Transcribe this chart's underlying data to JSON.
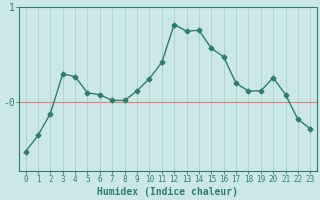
{
  "x": [
    0,
    1,
    2,
    3,
    4,
    5,
    6,
    7,
    8,
    9,
    10,
    11,
    12,
    13,
    14,
    15,
    16,
    17,
    18,
    19,
    20,
    21,
    22,
    23
  ],
  "y": [
    -0.52,
    -0.35,
    -0.12,
    0.3,
    0.27,
    0.1,
    0.08,
    0.02,
    0.02,
    0.12,
    0.25,
    0.42,
    0.82,
    0.75,
    0.76,
    0.57,
    0.48,
    0.2,
    0.12,
    0.12,
    0.26,
    0.08,
    -0.18,
    -0.28
  ],
  "line_color": "#2e7d6e",
  "marker": "D",
  "marker_size": 2.5,
  "background_color": "#cce8e6",
  "grid_color": "#aad0ce",
  "xlabel": "Humidex (Indice chaleur)",
  "hline_color": "#e08080",
  "axis_color": "#2e7d6e",
  "tick_color": "#2e7d6e",
  "font_color": "#2e7d6e",
  "font_size": 7,
  "xlim": [
    -0.5,
    23.5
  ],
  "ylim": [
    -0.72,
    0.98
  ],
  "ytick_positions": [
    0.0,
    1.0
  ],
  "ytick_labels": [
    "-0",
    "1"
  ]
}
